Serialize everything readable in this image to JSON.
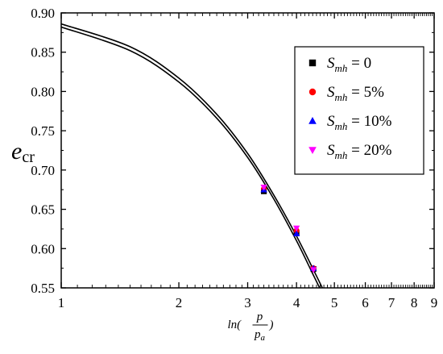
{
  "chart_data": {
    "type": "scatter",
    "x_scale": "log",
    "xlim": [
      1,
      9
    ],
    "ylim": [
      0.55,
      0.9
    ],
    "x_ticks": [
      1,
      2,
      3,
      4,
      5,
      6,
      7,
      8,
      9
    ],
    "x_tick_labels": [
      "1",
      "2",
      "3",
      "4",
      "5",
      "6",
      "7",
      "8",
      "9"
    ],
    "y_ticks": [
      0.55,
      0.6,
      0.65,
      0.7,
      0.75,
      0.8,
      0.85,
      0.9
    ],
    "y_tick_labels": [
      "0.55",
      "0.60",
      "0.65",
      "0.70",
      "0.75",
      "0.80",
      "0.85",
      "0.90"
    ],
    "ylabel": {
      "main": "e",
      "sub": "cr"
    },
    "xlabel": {
      "prefix": "ln(",
      "numerator": "p",
      "denominator": "p",
      "denominator_sub": "a",
      "suffix": ")"
    },
    "legend_position": "top-right",
    "series": [
      {
        "name_symbol": "S",
        "name_sub": "mh",
        "name_value": " = 0",
        "marker": "square",
        "color": "#000000",
        "points": [
          {
            "x": 3.3,
            "y": 0.673
          },
          {
            "x": 4.0,
            "y": 0.62
          },
          {
            "x": 4.42,
            "y": 0.574
          }
        ]
      },
      {
        "name_symbol": "S",
        "name_sub": "mh",
        "name_value": " = 5%",
        "marker": "circle",
        "color": "#ff0000",
        "points": [
          {
            "x": 3.3,
            "y": 0.676
          },
          {
            "x": 4.0,
            "y": 0.623
          },
          {
            "x": 4.42,
            "y": 0.575
          }
        ]
      },
      {
        "name_symbol": "S",
        "name_sub": "mh",
        "name_value": " = 10%",
        "marker": "triangle-up",
        "color": "#0000ff",
        "points": [
          {
            "x": 3.3,
            "y": 0.675
          },
          {
            "x": 4.0,
            "y": 0.619
          },
          {
            "x": 4.42,
            "y": 0.575
          }
        ]
      },
      {
        "name_symbol": "S",
        "name_sub": "mh",
        "name_value": " = 20%",
        "marker": "triangle-down",
        "color": "#ff00ff",
        "points": [
          {
            "x": 3.3,
            "y": 0.678
          },
          {
            "x": 4.0,
            "y": 0.626
          },
          {
            "x": 4.42,
            "y": 0.573
          }
        ]
      }
    ],
    "fit_lines": [
      {
        "color": "#000000",
        "points": [
          {
            "x": 1.0,
            "y": 0.886
          },
          {
            "x": 1.5,
            "y": 0.857
          },
          {
            "x": 2.0,
            "y": 0.817
          },
          {
            "x": 2.5,
            "y": 0.771
          },
          {
            "x": 3.0,
            "y": 0.721
          },
          {
            "x": 3.5,
            "y": 0.668
          },
          {
            "x": 4.0,
            "y": 0.616
          },
          {
            "x": 4.4,
            "y": 0.575
          },
          {
            "x": 4.7,
            "y": 0.546
          }
        ]
      },
      {
        "color": "#000000",
        "points": [
          {
            "x": 1.0,
            "y": 0.882
          },
          {
            "x": 1.5,
            "y": 0.852
          },
          {
            "x": 2.0,
            "y": 0.812
          },
          {
            "x": 2.5,
            "y": 0.766
          },
          {
            "x": 3.0,
            "y": 0.716
          },
          {
            "x": 3.5,
            "y": 0.663
          },
          {
            "x": 4.0,
            "y": 0.61
          },
          {
            "x": 4.4,
            "y": 0.568
          },
          {
            "x": 4.7,
            "y": 0.539
          }
        ]
      }
    ]
  }
}
